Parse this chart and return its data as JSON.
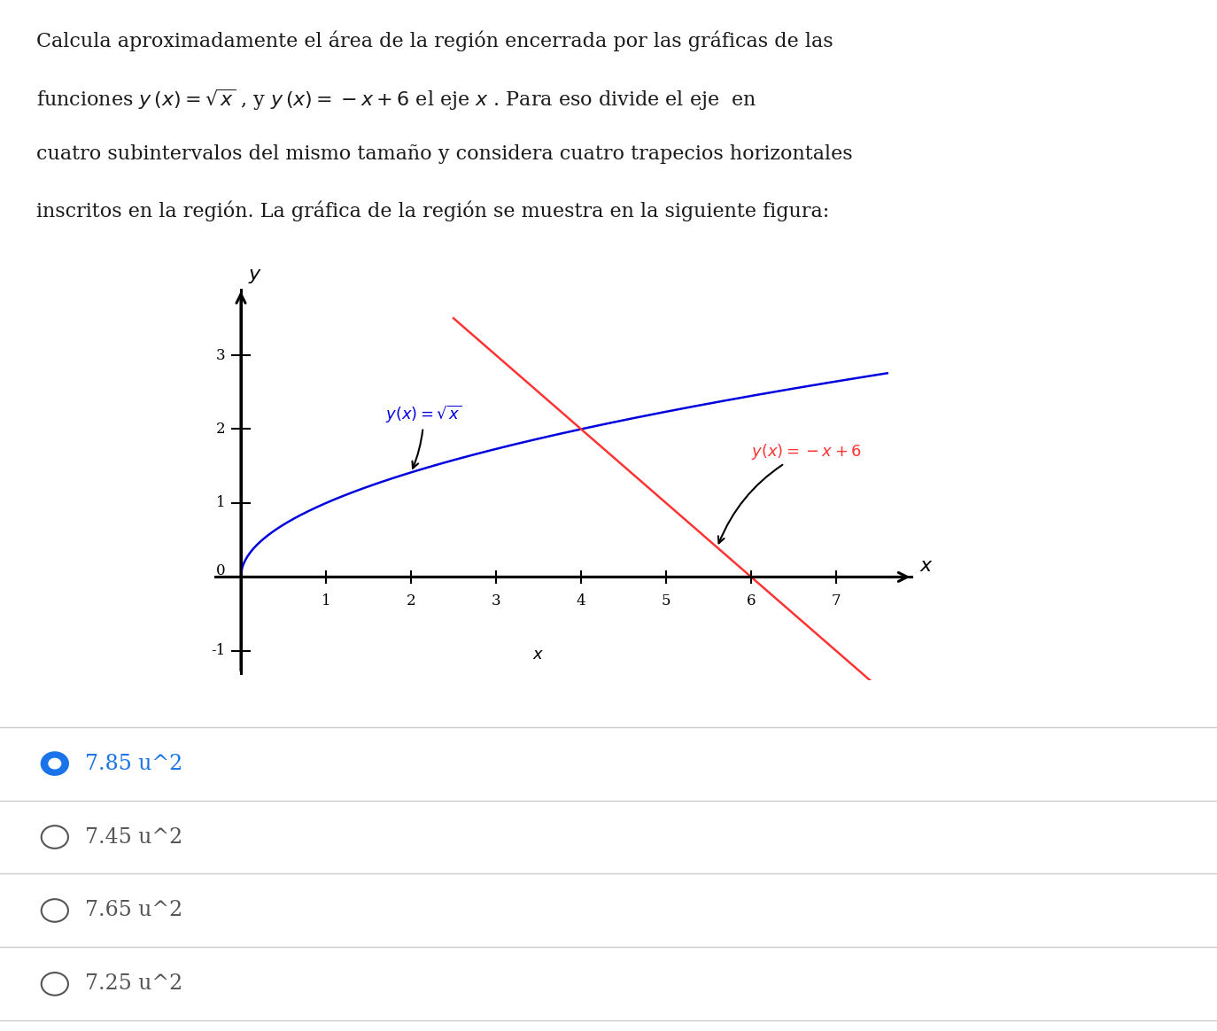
{
  "background_color": "#ffffff",
  "sqrt_color": "#0000dd",
  "linear_color": "#ff3333",
  "axis_color": "#000000",
  "xlim": [
    -0.4,
    7.9
  ],
  "ylim": [
    -1.4,
    3.9
  ],
  "xticks": [
    1,
    2,
    3,
    4,
    5,
    6,
    7
  ],
  "yticks": [
    -1,
    1,
    2,
    3
  ],
  "options": [
    "7.85 u^2",
    "7.45 u^2",
    "7.65 u^2",
    "7.25 u^2"
  ],
  "selected_option": 0,
  "option_color_selected": "#1a73e8",
  "option_color_unselected": "#555555",
  "text_color": "#1a1a1a",
  "font_size_title": 16,
  "font_size_options": 17,
  "title_lines": [
    "Calcula aproximadamente el área de la región encerrada por las gráficas de las",
    "funciones $y\\,(x) = \\sqrt{x}$ , y $y\\,(x) = -x + 6$ el eje $x$ . Para eso divide el eje  en",
    "cuatro subintervalos del mismo tamaño y considera cuatro trapecios horizontales",
    "inscritos en la región. La gráfica de la región se muestra en la siguiente figura:"
  ]
}
